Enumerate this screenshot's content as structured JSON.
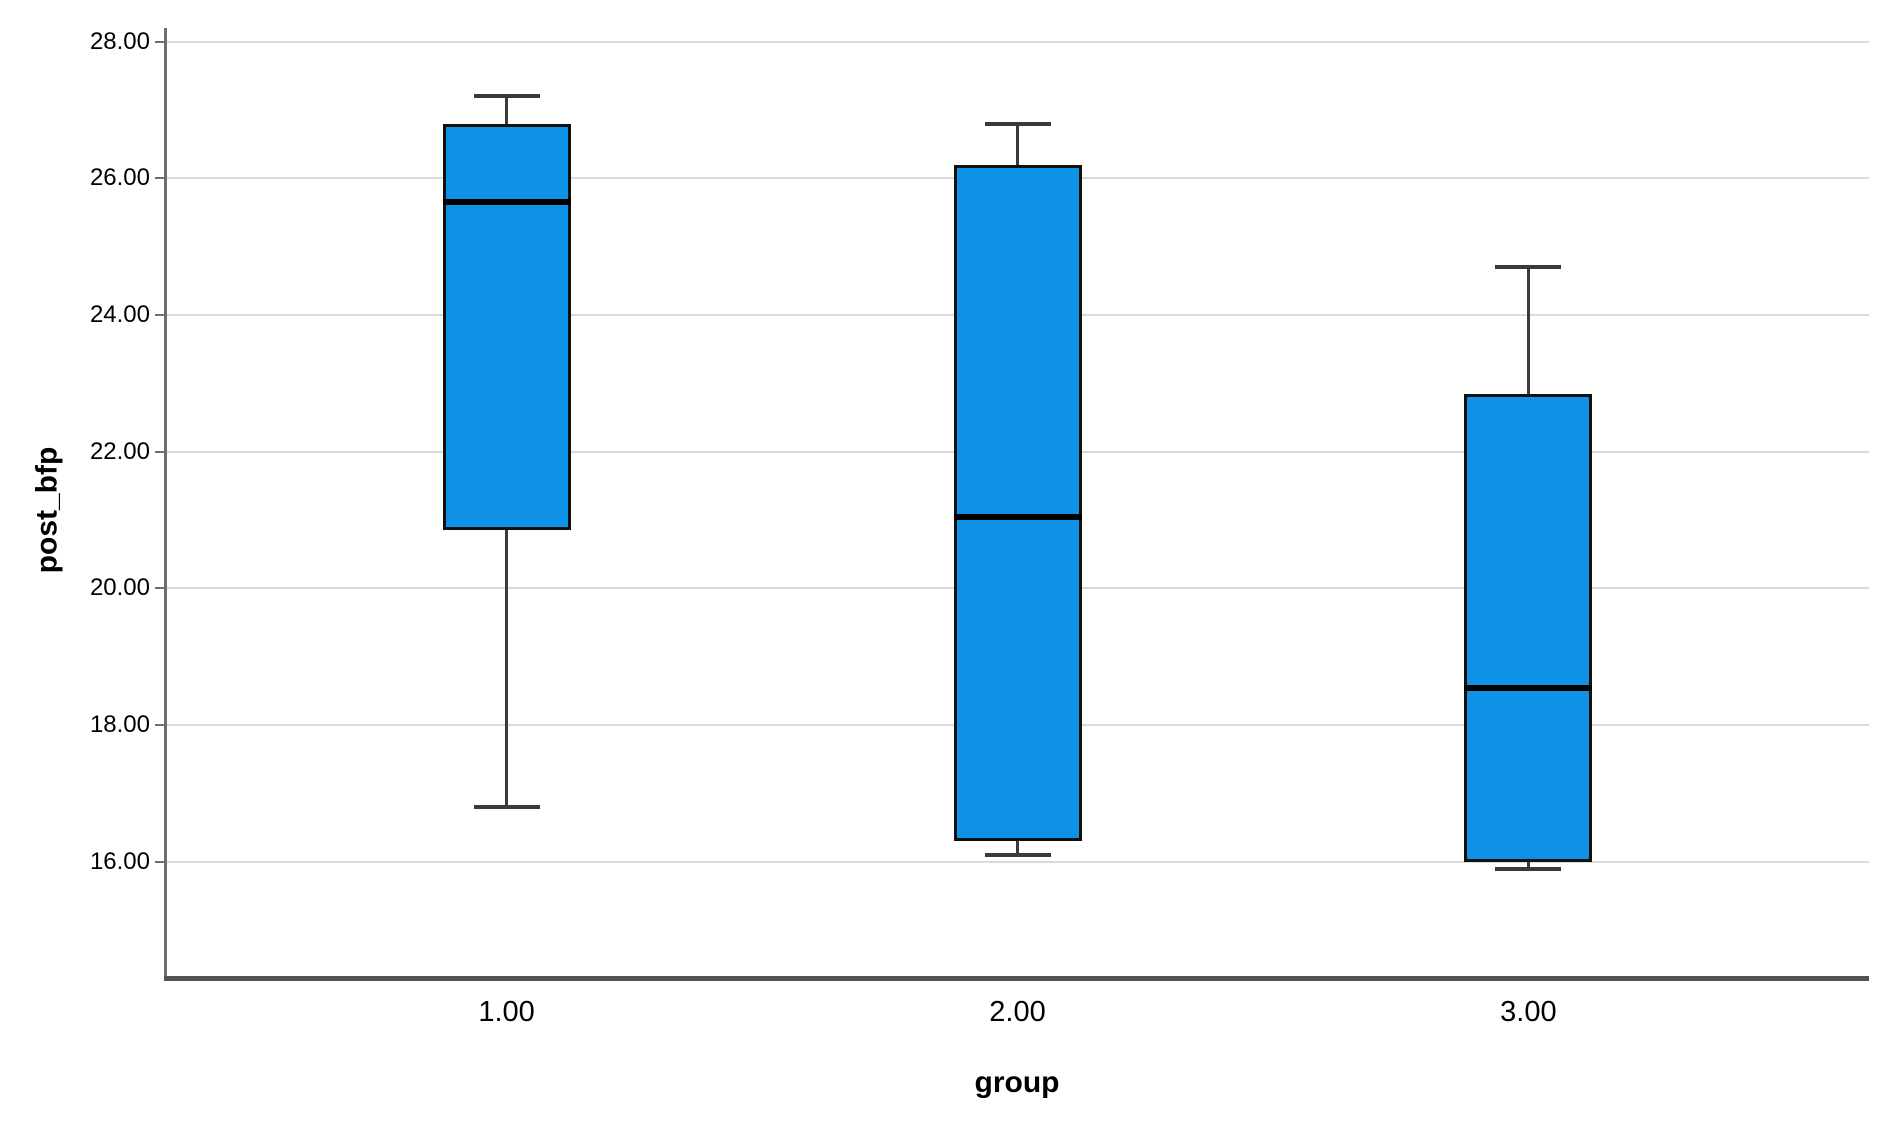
{
  "figure": {
    "background": "#FFFFFF"
  },
  "chart_data": {
    "type": "boxplot",
    "title": "",
    "xlabel": "group",
    "ylabel": "post_bfp",
    "categories": [
      "1.00",
      "2.00",
      "3.00"
    ],
    "boxes": [
      {
        "category": "1.00",
        "whisker_low": 16.8,
        "q1": 20.85,
        "median": 25.65,
        "q3": 26.8,
        "whisker_high": 27.2
      },
      {
        "category": "2.00",
        "whisker_low": 16.1,
        "q1": 16.3,
        "median": 21.05,
        "q3": 26.2,
        "whisker_high": 26.8
      },
      {
        "category": "3.00",
        "whisker_low": 15.9,
        "q1": 16.0,
        "median": 18.55,
        "q3": 22.85,
        "whisker_high": 24.7
      }
    ],
    "outliers": [],
    "y_ticks": [
      {
        "value": 16,
        "label": "16.00"
      },
      {
        "value": 18,
        "label": "18.00"
      },
      {
        "value": 20,
        "label": "20.00"
      },
      {
        "value": 22,
        "label": "22.00"
      },
      {
        "value": 24,
        "label": "24.00"
      },
      {
        "value": 26,
        "label": "26.00"
      },
      {
        "value": 28,
        "label": "28.00"
      }
    ],
    "ylim": [
      14.3,
      28.2
    ],
    "grid": "horizontal",
    "legend": "none",
    "colors": {
      "box_fill": "#0E92E8",
      "box_border": "#12100B",
      "median": "#000000",
      "whisker": "#3A3A3A",
      "gridline": "#DADADA",
      "y_axis": "#6E6E6E",
      "x_axis": "#545454",
      "text": "#000000"
    }
  }
}
